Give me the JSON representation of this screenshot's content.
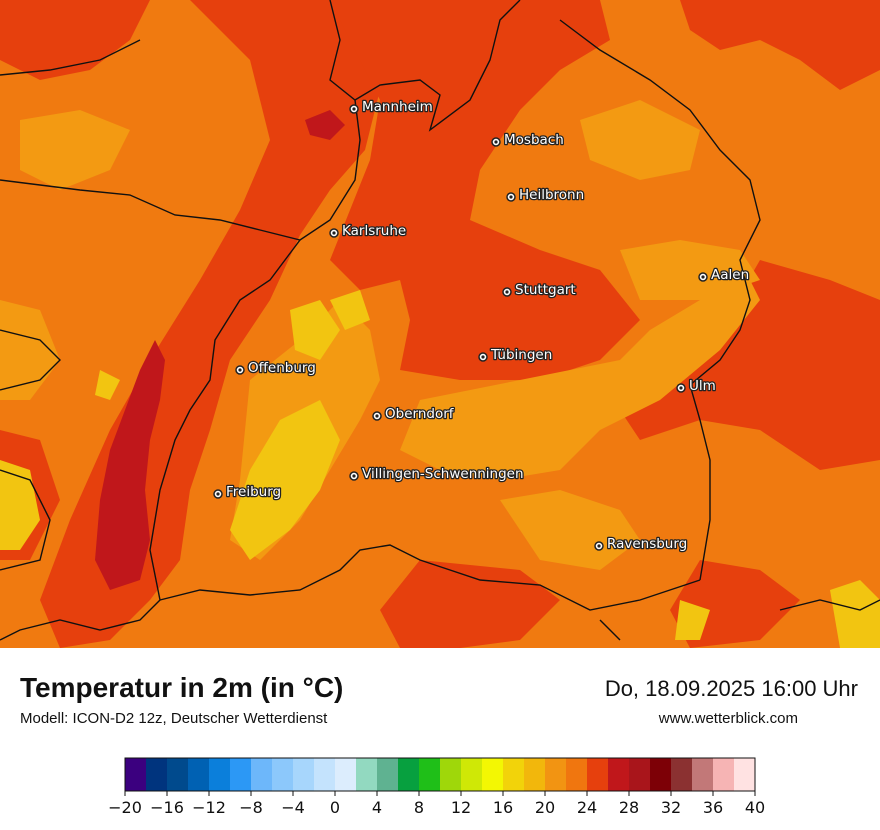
{
  "title": "Temperatur in 2m (in °C)",
  "subtitle": "Modell: ICON-D2 12z, Deutscher Wetterdienst",
  "datetime": "Do, 18.09.2025 16:00 Uhr",
  "website": "www.wetterblick.com",
  "colors": {
    "base_orange": "#f07a10",
    "dark_orange": "#e6400d",
    "red": "#c0171b",
    "light_orange": "#f39a12",
    "yellow": "#f2c511",
    "border": "#111111"
  },
  "cities": [
    {
      "name": "Mannheim"
    },
    {
      "name": "Mosbach"
    },
    {
      "name": "Heilbronn"
    },
    {
      "name": "Karlsruhe"
    },
    {
      "name": "Aalen"
    },
    {
      "name": "Stuttgart"
    },
    {
      "name": "Tübingen"
    },
    {
      "name": "Offenburg"
    },
    {
      "name": "Ulm"
    },
    {
      "name": "Oberndorf"
    },
    {
      "name": "Villingen-Schwenningen"
    },
    {
      "name": "Freiburg"
    },
    {
      "name": "Ravensburg"
    }
  ],
  "legend": {
    "ticks": [
      "−20",
      "−16",
      "−12",
      "−8",
      "−4",
      "0",
      "4",
      "8",
      "12",
      "16",
      "20",
      "24",
      "28",
      "32",
      "36",
      "40"
    ],
    "colors": [
      "#3b007f",
      "#00347e",
      "#004a8d",
      "#0061b3",
      "#0b7fdb",
      "#2c98f5",
      "#6db7fa",
      "#8cc8fb",
      "#a7d6fc",
      "#c4e3fd",
      "#dcedfd",
      "#92d9c0",
      "#5fb291",
      "#07a03f",
      "#1fbf18",
      "#9fd70a",
      "#cfe806",
      "#f3f703",
      "#f2d30a",
      "#f2b70c",
      "#f29412",
      "#f0760f",
      "#e6400d",
      "#c0171b",
      "#a9151b",
      "#7d0006",
      "#8b3131",
      "#c27878",
      "#f6b4b4",
      "#ffe2e2"
    ]
  }
}
